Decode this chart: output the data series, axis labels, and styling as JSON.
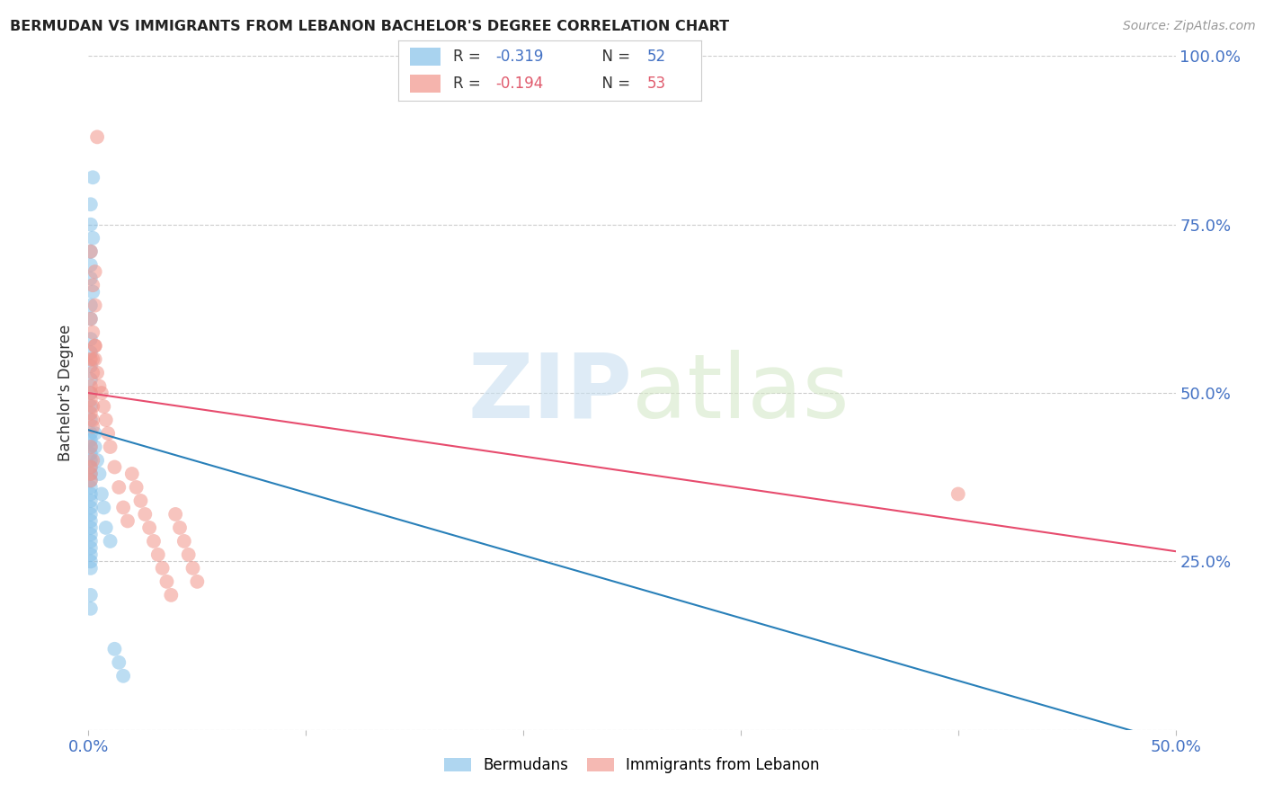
{
  "title": "BERMUDAN VS IMMIGRANTS FROM LEBANON BACHELOR'S DEGREE CORRELATION CHART",
  "source": "Source: ZipAtlas.com",
  "ylabel": "Bachelor's Degree",
  "watermark_zip": "ZIP",
  "watermark_atlas": "atlas",
  "legend": {
    "bermudans_label": "Bermudans",
    "lebanon_label": "Immigrants from Lebanon",
    "bermudans_R": "R = -0.319",
    "bermudans_N": "N = 52",
    "lebanon_R": "R = -0.194",
    "lebanon_N": "N = 53"
  },
  "y_ticks": [
    0.0,
    0.25,
    0.5,
    0.75,
    1.0
  ],
  "y_tick_labels_right": [
    "",
    "25.0%",
    "50.0%",
    "75.0%",
    "100.0%"
  ],
  "x_range": [
    0.0,
    0.5
  ],
  "y_range": [
    0.0,
    1.0
  ],
  "bermudans_color": "#85c1e9",
  "lebanon_color": "#f1948a",
  "regression_bermudans_color": "#2980b9",
  "regression_lebanon_color": "#e74c6e",
  "background_color": "#ffffff",
  "bermudans_x": [
    0.002,
    0.001,
    0.001,
    0.002,
    0.001,
    0.001,
    0.001,
    0.002,
    0.001,
    0.001,
    0.001,
    0.001,
    0.001,
    0.001,
    0.001,
    0.001,
    0.001,
    0.001,
    0.001,
    0.001,
    0.001,
    0.001,
    0.001,
    0.001,
    0.001,
    0.001,
    0.001,
    0.001,
    0.001,
    0.001,
    0.001,
    0.001,
    0.001,
    0.001,
    0.001,
    0.001,
    0.001,
    0.001,
    0.001,
    0.001,
    0.003,
    0.003,
    0.004,
    0.005,
    0.006,
    0.007,
    0.008,
    0.01,
    0.012,
    0.014,
    0.016,
    0.5
  ],
  "bermudans_y": [
    0.82,
    0.78,
    0.75,
    0.73,
    0.71,
    0.69,
    0.67,
    0.65,
    0.63,
    0.61,
    0.58,
    0.56,
    0.54,
    0.52,
    0.5,
    0.48,
    0.46,
    0.44,
    0.43,
    0.42,
    0.41,
    0.4,
    0.39,
    0.38,
    0.37,
    0.36,
    0.35,
    0.34,
    0.33,
    0.32,
    0.31,
    0.3,
    0.29,
    0.28,
    0.27,
    0.26,
    0.25,
    0.24,
    0.2,
    0.18,
    0.44,
    0.42,
    0.4,
    0.38,
    0.35,
    0.33,
    0.3,
    0.28,
    0.12,
    0.1,
    0.08,
    -0.02
  ],
  "lebanon_x": [
    0.004,
    0.001,
    0.003,
    0.002,
    0.003,
    0.001,
    0.002,
    0.003,
    0.001,
    0.002,
    0.001,
    0.001,
    0.001,
    0.002,
    0.001,
    0.002,
    0.002,
    0.003,
    0.002,
    0.001,
    0.002,
    0.001,
    0.001,
    0.001,
    0.003,
    0.004,
    0.005,
    0.006,
    0.007,
    0.008,
    0.009,
    0.01,
    0.012,
    0.014,
    0.016,
    0.018,
    0.02,
    0.022,
    0.024,
    0.026,
    0.028,
    0.03,
    0.032,
    0.034,
    0.036,
    0.038,
    0.04,
    0.042,
    0.044,
    0.046,
    0.048,
    0.05,
    0.4
  ],
  "lebanon_y": [
    0.88,
    0.71,
    0.68,
    0.66,
    0.63,
    0.61,
    0.59,
    0.57,
    0.55,
    0.53,
    0.51,
    0.5,
    0.49,
    0.48,
    0.47,
    0.46,
    0.45,
    0.57,
    0.55,
    0.42,
    0.4,
    0.39,
    0.38,
    0.37,
    0.55,
    0.53,
    0.51,
    0.5,
    0.48,
    0.46,
    0.44,
    0.42,
    0.39,
    0.36,
    0.33,
    0.31,
    0.38,
    0.36,
    0.34,
    0.32,
    0.3,
    0.28,
    0.26,
    0.24,
    0.22,
    0.2,
    0.32,
    0.3,
    0.28,
    0.26,
    0.24,
    0.22,
    0.35
  ]
}
